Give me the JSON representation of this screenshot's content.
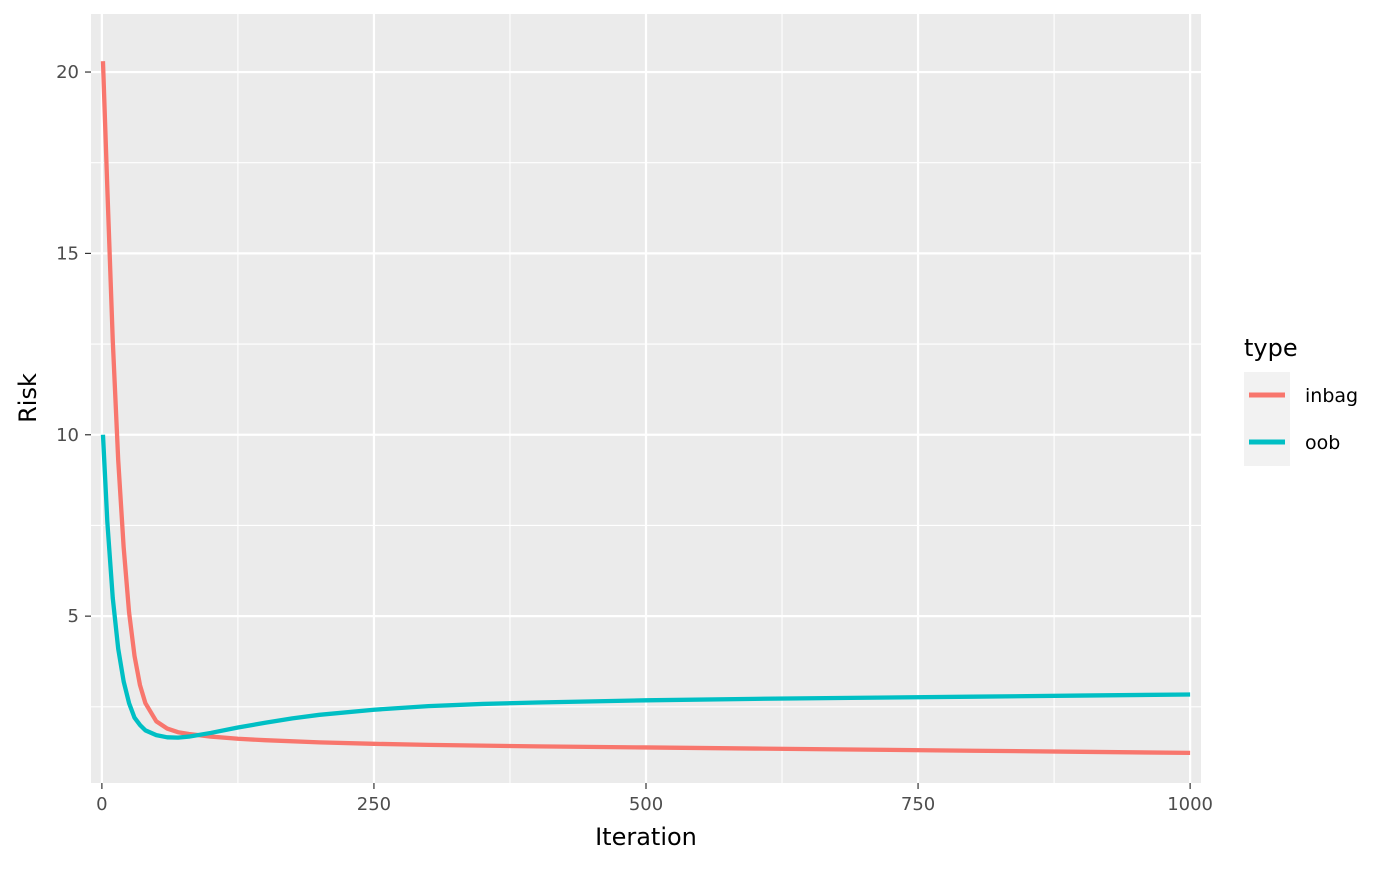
{
  "chart_data": {
    "type": "line",
    "title": "",
    "xlabel": "Iteration",
    "ylabel": "Risk",
    "xlim": [
      -10,
      1010
    ],
    "ylim": [
      0.4,
      21.6
    ],
    "x_ticks": [
      0,
      250,
      500,
      750,
      1000
    ],
    "x_tick_labels": [
      "0",
      "250",
      "500",
      "750",
      "1000"
    ],
    "y_ticks": [
      5,
      10,
      15,
      20
    ],
    "y_tick_labels": [
      "5",
      "10",
      "15",
      "20"
    ],
    "grid": true,
    "legend": {
      "title": "type",
      "placement": "right"
    },
    "series": [
      {
        "name": "inbag",
        "color": "#F8766D",
        "x": [
          1,
          5,
          10,
          15,
          20,
          25,
          30,
          35,
          40,
          50,
          60,
          70,
          80,
          100,
          125,
          150,
          200,
          250,
          300,
          400,
          500,
          600,
          700,
          800,
          900,
          1000
        ],
        "y": [
          20.3,
          16.8,
          12.6,
          9.3,
          6.9,
          5.1,
          3.9,
          3.1,
          2.6,
          2.1,
          1.9,
          1.8,
          1.75,
          1.68,
          1.62,
          1.58,
          1.52,
          1.48,
          1.45,
          1.41,
          1.38,
          1.35,
          1.32,
          1.29,
          1.26,
          1.23
        ]
      },
      {
        "name": "oob",
        "color": "#00BFC4",
        "x": [
          1,
          5,
          10,
          15,
          20,
          25,
          30,
          35,
          40,
          50,
          60,
          70,
          80,
          100,
          125,
          150,
          175,
          200,
          250,
          300,
          350,
          400,
          500,
          600,
          700,
          800,
          900,
          1000
        ],
        "y": [
          10.0,
          7.6,
          5.5,
          4.1,
          3.2,
          2.6,
          2.2,
          2.0,
          1.85,
          1.72,
          1.66,
          1.65,
          1.68,
          1.78,
          1.93,
          2.06,
          2.18,
          2.28,
          2.42,
          2.52,
          2.58,
          2.62,
          2.68,
          2.72,
          2.75,
          2.78,
          2.81,
          2.84
        ]
      }
    ]
  }
}
